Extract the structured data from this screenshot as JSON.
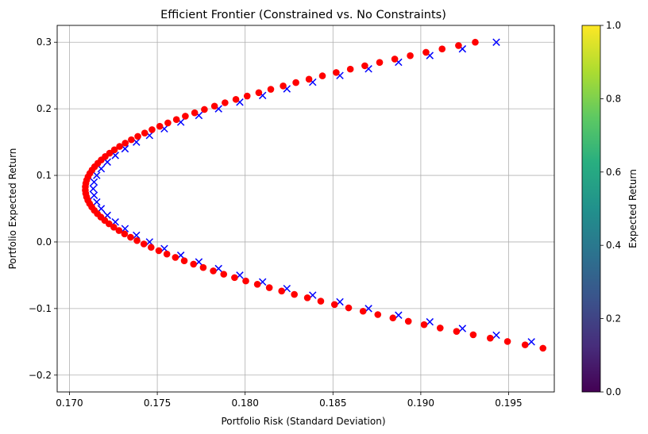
{
  "chart_data": {
    "type": "scatter",
    "title": "Efficient Frontier (Constrained vs. No Constraints)",
    "xlabel": "Portfolio Risk (Standard Deviation)",
    "ylabel": "Portfolio Expected Return",
    "xlim": [
      0.1693,
      0.1976
    ],
    "ylim": [
      -0.2253,
      0.3253
    ],
    "xticks": [
      "0.170",
      "0.175",
      "0.180",
      "0.185",
      "0.190",
      "0.195"
    ],
    "xtick_values": [
      0.17,
      0.175,
      0.18,
      0.185,
      0.19,
      0.195
    ],
    "yticks": [
      "−0.2",
      "−0.1",
      "0.0",
      "0.1",
      "0.2",
      "0.3"
    ],
    "ytick_values": [
      -0.2,
      -0.1,
      0.0,
      0.1,
      0.2,
      0.3
    ],
    "grid": true,
    "colorbar": {
      "label": "Expected Return",
      "colormap": "viridis",
      "range": [
        0,
        1
      ],
      "ticks": [
        "0.0",
        "0.2",
        "0.4",
        "0.6",
        "0.8",
        "1.0"
      ],
      "tick_values": [
        0.0,
        0.2,
        0.4,
        0.6,
        0.8,
        1.0
      ]
    },
    "series": [
      {
        "marker": "x",
        "color": "#0000ff",
        "frontier": {
          "min_risk": 0.17135,
          "return_at_min_risk": 0.08,
          "y_from": -0.2,
          "y_to": 0.3,
          "points": 51,
          "x_at_max_return": 0.1943
        }
      },
      {
        "marker": "circle",
        "color": "#ff0000",
        "frontier": {
          "min_risk": 0.1709,
          "return_at_min_risk": 0.08,
          "y_from": -0.2,
          "y_to": 0.3,
          "points": 100,
          "x_at_max_return": 0.1931
        }
      }
    ]
  }
}
